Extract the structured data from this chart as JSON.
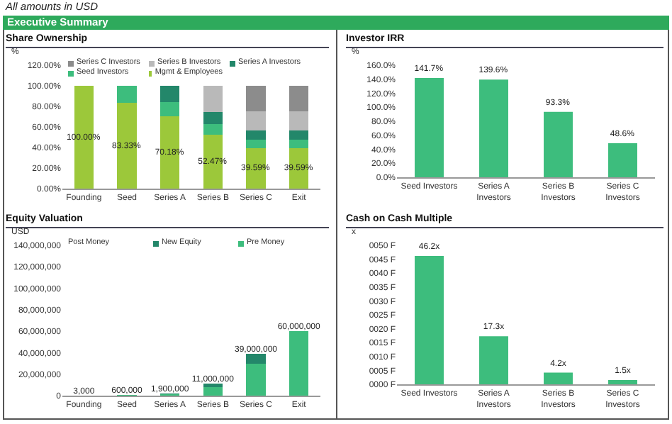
{
  "chart_data": [
    {
      "type": "bar",
      "title": "Share Ownership",
      "ylabel": "%",
      "annotations": [
        "All amounts in USD",
        "Executive Summary"
      ],
      "stacked": true,
      "legend": "top",
      "categories": [
        "Founding",
        "Seed",
        "Series A",
        "Series B",
        "Series C",
        "Exit"
      ],
      "ylim": [
        0,
        120
      ],
      "yticks": [
        {
          "value": 0,
          "label": "0.00%"
        },
        {
          "value": 20,
          "label": "20.00%"
        },
        {
          "value": 40,
          "label": "40.00%"
        },
        {
          "value": 60,
          "label": "60.00%"
        },
        {
          "value": 80,
          "label": "80.00%"
        },
        {
          "value": 100,
          "label": "100.00%"
        },
        {
          "value": 120,
          "label": "120.00%"
        }
      ],
      "series": [
        {
          "name": "Mgmt & Employees",
          "color": "#9cc83a",
          "values": [
            100,
            83.33,
            70.18,
            52.47,
            39.59,
            39.59
          ],
          "value_labels": [
            "100.00%",
            "83.33%",
            "70.18%",
            "52.47%",
            "39.59%",
            "39.59%"
          ]
        },
        {
          "name": "Seed Investors",
          "color": "#3dbd7d",
          "values": [
            0,
            16.67,
            14.0,
            10.5,
            7.9,
            7.9
          ]
        },
        {
          "name": "Series A Investors",
          "color": "#23876a",
          "values": [
            0,
            0,
            15.8,
            11.8,
            8.9,
            8.9
          ]
        },
        {
          "name": "Series B Investors",
          "color": "#b9b9b9",
          "values": [
            0,
            0,
            0,
            25.2,
            19.1,
            19.1
          ]
        },
        {
          "name": "Series C Investors",
          "color": "#8c8c8c",
          "values": [
            0,
            0,
            0,
            0,
            24.5,
            24.5
          ]
        }
      ]
    },
    {
      "type": "bar",
      "title": "Investor IRR",
      "ylabel": "%",
      "categories": [
        "Seed Investors",
        "Series A Investors",
        "Series B Investors",
        "Series C Investors"
      ],
      "values": [
        141.7,
        139.6,
        93.3,
        48.6
      ],
      "value_labels": [
        "141.7%",
        "139.6%",
        "93.3%",
        "48.6%"
      ],
      "color": "#3dbd7d",
      "ylim": [
        0,
        160
      ],
      "yticks": [
        {
          "value": 0,
          "label": "0.0%"
        },
        {
          "value": 20,
          "label": "20.0%"
        },
        {
          "value": 40,
          "label": "40.0%"
        },
        {
          "value": 60,
          "label": "60.0%"
        },
        {
          "value": 80,
          "label": "80.0%"
        },
        {
          "value": 100,
          "label": "100.0%"
        },
        {
          "value": 120,
          "label": "120.0%"
        },
        {
          "value": 140,
          "label": "140.0%"
        },
        {
          "value": 160,
          "label": "160.0%"
        }
      ]
    },
    {
      "type": "bar",
      "title": "Equity Valuation",
      "ylabel": "USD",
      "stacked": true,
      "legend": "top",
      "categories": [
        "Founding",
        "Seed",
        "Series A",
        "Series B",
        "Series C",
        "Exit"
      ],
      "ylim": [
        0,
        140000000
      ],
      "yticks": [
        {
          "value": 0,
          "label": "0"
        },
        {
          "value": 20000000,
          "label": "20,000,000"
        },
        {
          "value": 40000000,
          "label": "40,000,000"
        },
        {
          "value": 60000000,
          "label": "60,000,000"
        },
        {
          "value": 80000000,
          "label": "80,000,000"
        },
        {
          "value": 100000000,
          "label": "100,000,000"
        },
        {
          "value": 120000000,
          "label": "120,000,000"
        },
        {
          "value": 140000000,
          "label": "140,000,000"
        }
      ],
      "series": [
        {
          "name": "Pre Money",
          "color": "#3dbd7d",
          "values": [
            0,
            500000,
            1600000,
            8200000,
            29400000,
            60000000
          ]
        },
        {
          "name": "New Equity",
          "color": "#23876a",
          "values": [
            3000,
            100000,
            300000,
            2800000,
            9600000,
            0
          ]
        }
      ],
      "legend_title": "Post Money",
      "totals": [
        "3,000",
        "600,000",
        "1,900,000",
        "11,000,000",
        "39,000,000",
        "60,000,000"
      ]
    },
    {
      "type": "bar",
      "title": "Cash on Cash Multiple",
      "ylabel": "x",
      "categories": [
        "Seed Investors",
        "Series A Investors",
        "Series B Investors",
        "Series C Investors"
      ],
      "values": [
        46.2,
        17.3,
        4.2,
        1.5
      ],
      "value_labels": [
        "46.2x",
        "17.3x",
        "4.2x",
        "1.5x"
      ],
      "color": "#3dbd7d",
      "ylim": [
        0,
        50
      ],
      "yticks": [
        {
          "value": 0,
          "label": "0000 F"
        },
        {
          "value": 5,
          "label": "0005 F"
        },
        {
          "value": 10,
          "label": "0010 F"
        },
        {
          "value": 15,
          "label": "0015 F"
        },
        {
          "value": 20,
          "label": "0020 F"
        },
        {
          "value": 25,
          "label": "0025 F"
        },
        {
          "value": 30,
          "label": "0030 F"
        },
        {
          "value": 35,
          "label": "0035 F"
        },
        {
          "value": 40,
          "label": "0040 F"
        },
        {
          "value": 45,
          "label": "0045 F"
        },
        {
          "value": 50,
          "label": "0050 F"
        }
      ]
    }
  ]
}
